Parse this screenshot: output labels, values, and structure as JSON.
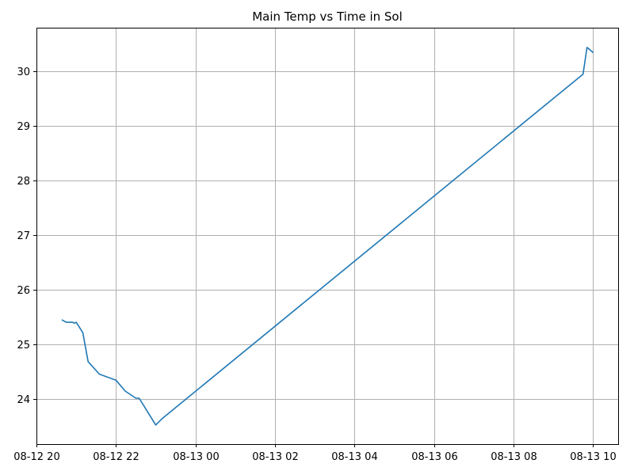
{
  "chart_data": {
    "type": "line",
    "title": "Main Temp vs Time in Sol",
    "xlabel": "",
    "ylabel": "",
    "x_ticks": [
      "08-12 20",
      "08-12 22",
      "08-13 00",
      "08-13 02",
      "08-13 04",
      "08-13 06",
      "08-13 08",
      "08-13 10"
    ],
    "y_ticks": [
      "24",
      "25",
      "26",
      "27",
      "28",
      "29",
      "30"
    ],
    "xlim": [
      "2023-08-12T20:00",
      "2023-08-13T10:38"
    ],
    "ylim": [
      23.18,
      30.8
    ],
    "grid": true,
    "series": [
      {
        "color": "#1f77b4",
        "points": [
          {
            "x": "2023-08-12T20:39",
            "y": 25.45
          },
          {
            "x": "2023-08-12T20:45",
            "y": 25.41
          },
          {
            "x": "2023-08-12T20:55",
            "y": 25.41
          },
          {
            "x": "2023-08-12T20:57",
            "y": 25.39
          },
          {
            "x": "2023-08-12T21:00",
            "y": 25.41
          },
          {
            "x": "2023-08-12T21:10",
            "y": 25.22
          },
          {
            "x": "2023-08-12T21:18",
            "y": 24.69
          },
          {
            "x": "2023-08-12T21:35",
            "y": 24.46
          },
          {
            "x": "2023-08-12T22:00",
            "y": 24.35
          },
          {
            "x": "2023-08-12T22:14",
            "y": 24.15
          },
          {
            "x": "2023-08-12T22:30",
            "y": 24.02
          },
          {
            "x": "2023-08-12T22:35",
            "y": 24.02
          },
          {
            "x": "2023-08-12T23:00",
            "y": 23.53
          },
          {
            "x": "2023-08-12T23:10",
            "y": 23.65
          },
          {
            "x": "2023-08-13T09:45",
            "y": 29.95
          },
          {
            "x": "2023-08-13T09:51",
            "y": 30.44
          },
          {
            "x": "2023-08-13T10:00",
            "y": 30.35
          }
        ]
      }
    ]
  }
}
